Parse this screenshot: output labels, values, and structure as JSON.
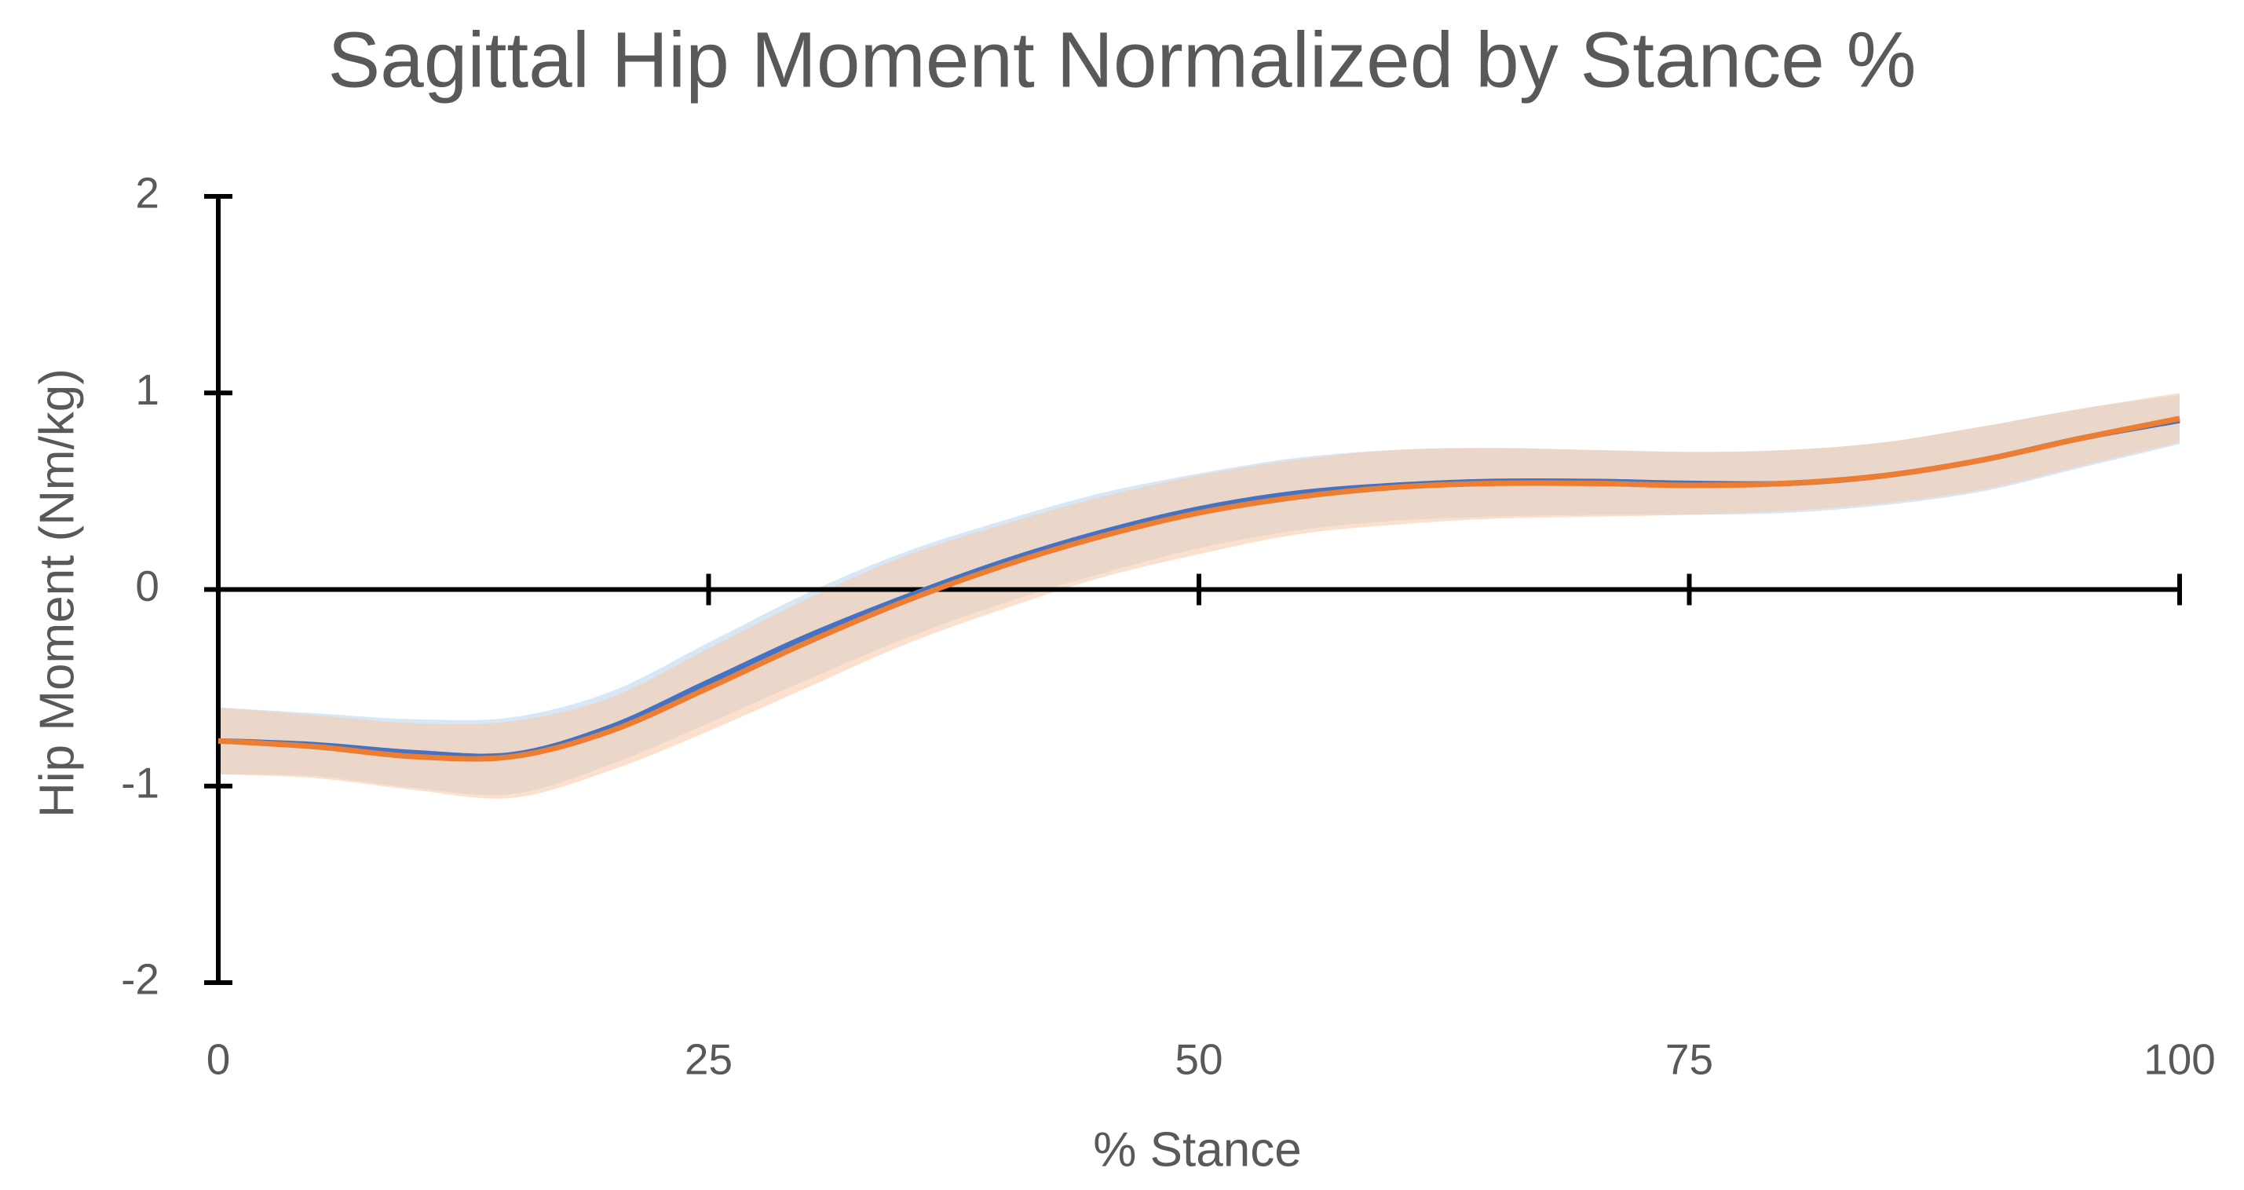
{
  "chart_data": {
    "type": "line",
    "title": "Sagittal Hip Moment Normalized by Stance %",
    "x_label": "% Stance",
    "y_label": "Hip Moment (Nm/kg)",
    "x": [
      0,
      5,
      10,
      15,
      20,
      25,
      30,
      35,
      40,
      45,
      50,
      55,
      60,
      65,
      70,
      75,
      80,
      85,
      90,
      95,
      100
    ],
    "series": [
      {
        "color": "#4472c4",
        "band_color": "#bdd7ee",
        "values": [
          -0.77,
          -0.79,
          -0.83,
          -0.84,
          -0.7,
          -0.47,
          -0.24,
          -0.04,
          0.14,
          0.29,
          0.41,
          0.49,
          0.53,
          0.55,
          0.55,
          0.54,
          0.54,
          0.58,
          0.66,
          0.77,
          0.86
        ],
        "upper": [
          -0.6,
          -0.63,
          -0.66,
          -0.65,
          -0.52,
          -0.27,
          -0.02,
          0.19,
          0.35,
          0.49,
          0.59,
          0.67,
          0.71,
          0.72,
          0.71,
          0.7,
          0.71,
          0.75,
          0.83,
          0.92,
          0.99
        ],
        "lower": [
          -0.94,
          -0.95,
          -1.01,
          -1.04,
          -0.89,
          -0.68,
          -0.46,
          -0.25,
          -0.07,
          0.08,
          0.21,
          0.3,
          0.35,
          0.37,
          0.38,
          0.38,
          0.39,
          0.43,
          0.5,
          0.62,
          0.74
        ]
      },
      {
        "color": "#ed7d31",
        "band_color": "#f8cbad",
        "values": [
          -0.77,
          -0.8,
          -0.85,
          -0.85,
          -0.72,
          -0.5,
          -0.27,
          -0.06,
          0.12,
          0.27,
          0.39,
          0.47,
          0.52,
          0.54,
          0.54,
          0.53,
          0.54,
          0.58,
          0.66,
          0.77,
          0.87
        ],
        "upper": [
          -0.6,
          -0.64,
          -0.68,
          -0.67,
          -0.55,
          -0.3,
          -0.05,
          0.17,
          0.33,
          0.47,
          0.58,
          0.66,
          0.71,
          0.72,
          0.71,
          0.7,
          0.71,
          0.75,
          0.83,
          0.92,
          1.0
        ],
        "lower": [
          -0.94,
          -0.96,
          -1.02,
          -1.06,
          -0.92,
          -0.72,
          -0.5,
          -0.28,
          -0.1,
          0.06,
          0.18,
          0.28,
          0.33,
          0.36,
          0.37,
          0.38,
          0.4,
          0.44,
          0.51,
          0.63,
          0.75
        ]
      }
    ],
    "xlim": [
      0,
      100
    ],
    "xticks": [
      0,
      25,
      50,
      75,
      100
    ],
    "ylim": [
      -2,
      2
    ],
    "yticks": [
      -2,
      -1,
      0,
      1,
      2
    ],
    "grid": false
  }
}
